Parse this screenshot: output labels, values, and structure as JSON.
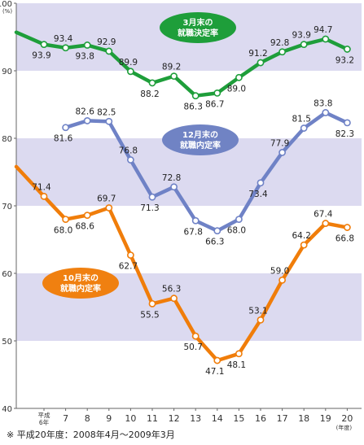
{
  "chart_data": {
    "type": "line",
    "ylabel": "(%)",
    "xlabel": "(年度)",
    "ylim": [
      40,
      100
    ],
    "yticks": [
      40,
      50,
      60,
      70,
      80,
      90,
      100
    ],
    "categories": [
      "平成6年",
      "7",
      "8",
      "9",
      "10",
      "11",
      "12",
      "13",
      "14",
      "15",
      "16",
      "17",
      "18",
      "19",
      "20"
    ],
    "series": [
      {
        "name": "3月末の就職決定率",
        "color": "#1e9e3a",
        "label_bg": "#1e9e3a",
        "start_value": 95.7,
        "values": [
          93.9,
          93.4,
          93.8,
          92.9,
          89.9,
          88.2,
          89.2,
          86.3,
          86.7,
          89.0,
          91.2,
          92.8,
          93.9,
          94.7,
          93.2
        ]
      },
      {
        "name": "12月末の就職内定率",
        "color": "#6f82c6",
        "label_bg": "#7083c4",
        "start_value": null,
        "values": [
          null,
          81.6,
          82.6,
          82.5,
          76.8,
          71.3,
          72.8,
          67.8,
          66.3,
          68.0,
          73.4,
          77.9,
          81.5,
          83.8,
          82.3
        ]
      },
      {
        "name": "10月末の就職内定率",
        "color": "#f07d0a",
        "label_bg": "#f08010",
        "start_value": 75.8,
        "values": [
          71.4,
          68.0,
          68.6,
          69.7,
          62.7,
          55.5,
          56.3,
          50.7,
          47.1,
          48.1,
          53.1,
          59.0,
          64.2,
          67.4,
          66.8
        ]
      }
    ],
    "bands": [
      [
        90,
        100
      ],
      [
        70,
        80
      ],
      [
        50,
        60
      ]
    ],
    "band_color": "#dcdaf0",
    "grid": false
  },
  "labels": {
    "green": [
      "3月末の",
      "就職決定率"
    ],
    "blue": [
      "12月末の",
      "就職内定率"
    ],
    "orange": [
      "10月末の",
      "就職内定率"
    ],
    "first_category": [
      "平成",
      "6年"
    ]
  },
  "footnote": "※ 平成20年度：2008年4月～2009年3月"
}
